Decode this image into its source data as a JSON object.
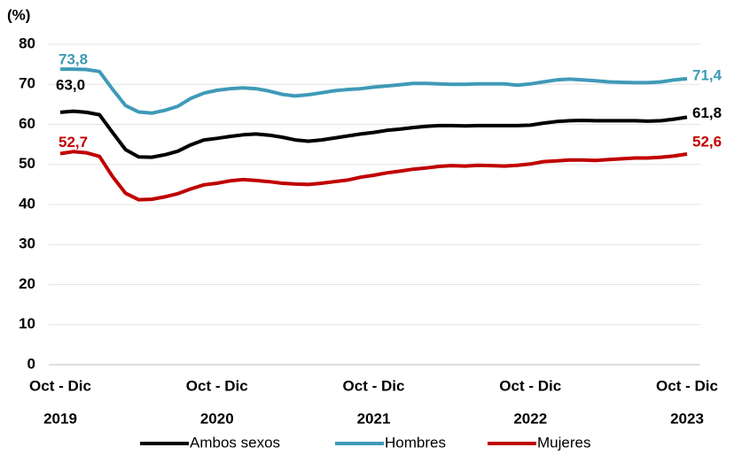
{
  "chart_data": {
    "type": "line",
    "y_axis_label": "(%)",
    "categories": [
      "Oct - Dic",
      null,
      null,
      null,
      null,
      null,
      null,
      null,
      null,
      null,
      null,
      null,
      "Oct - Dic",
      null,
      null,
      null,
      null,
      null,
      null,
      null,
      null,
      null,
      null,
      null,
      "Oct - Dic",
      null,
      null,
      null,
      null,
      null,
      null,
      null,
      null,
      null,
      null,
      null,
      "Oct - Dic",
      null,
      null,
      null,
      null,
      null,
      null,
      null,
      null,
      null,
      null,
      null,
      "Oct - Dic"
    ],
    "years": [
      "2019",
      null,
      null,
      null,
      null,
      null,
      null,
      null,
      null,
      null,
      null,
      null,
      "2020",
      null,
      null,
      null,
      null,
      null,
      null,
      null,
      null,
      null,
      null,
      null,
      "2021",
      null,
      null,
      null,
      null,
      null,
      null,
      null,
      null,
      null,
      null,
      null,
      "2022",
      null,
      null,
      null,
      null,
      null,
      null,
      null,
      null,
      null,
      null,
      null,
      "2023"
    ],
    "series": [
      {
        "name": "Ambos sexos",
        "color": "#000000",
        "values": [
          63.0,
          63.3,
          63.0,
          62.4,
          58.0,
          53.7,
          51.9,
          51.8,
          52.4,
          53.3,
          54.9,
          56.1,
          56.5,
          57.0,
          57.4,
          57.6,
          57.3,
          56.8,
          56.1,
          55.8,
          56.1,
          56.6,
          57.1,
          57.6,
          58.0,
          58.5,
          58.8,
          59.2,
          59.5,
          59.7,
          59.7,
          59.6,
          59.7,
          59.7,
          59.7,
          59.7,
          59.8,
          60.3,
          60.7,
          60.9,
          61.0,
          60.9,
          60.9,
          60.9,
          60.9,
          60.8,
          60.9,
          61.3,
          61.8
        ],
        "value_labels": [
          "63,0",
          null,
          null,
          null,
          null,
          null,
          null,
          null,
          null,
          null,
          null,
          null,
          null,
          null,
          null,
          null,
          null,
          null,
          null,
          null,
          null,
          null,
          null,
          null,
          null,
          null,
          null,
          null,
          null,
          null,
          null,
          null,
          null,
          null,
          null,
          null,
          null,
          null,
          null,
          null,
          null,
          null,
          null,
          null,
          null,
          null,
          null,
          null,
          "61,8"
        ]
      },
      {
        "name": "Hombres",
        "color": "#3f9ab8",
        "values": [
          73.8,
          73.8,
          73.7,
          73.2,
          68.8,
          64.7,
          63.1,
          62.8,
          63.5,
          64.5,
          66.5,
          67.8,
          68.5,
          68.9,
          69.1,
          68.9,
          68.3,
          67.5,
          67.1,
          67.4,
          67.9,
          68.4,
          68.7,
          68.9,
          69.3,
          69.6,
          69.9,
          70.2,
          70.2,
          70.1,
          70.0,
          70.0,
          70.1,
          70.1,
          70.1,
          69.8,
          70.1,
          70.6,
          71.1,
          71.3,
          71.1,
          70.9,
          70.6,
          70.5,
          70.4,
          70.4,
          70.6,
          71.1,
          71.4
        ],
        "value_labels": [
          "73,8",
          null,
          null,
          null,
          null,
          null,
          null,
          null,
          null,
          null,
          null,
          null,
          null,
          null,
          null,
          null,
          null,
          null,
          null,
          null,
          null,
          null,
          null,
          null,
          null,
          null,
          null,
          null,
          null,
          null,
          null,
          null,
          null,
          null,
          null,
          null,
          null,
          null,
          null,
          null,
          null,
          null,
          null,
          null,
          null,
          null,
          null,
          null,
          "71,4"
        ]
      },
      {
        "name": "Mujeres",
        "color": "#c00000",
        "values": [
          52.7,
          53.2,
          52.9,
          52.0,
          47.0,
          42.8,
          41.2,
          41.3,
          41.9,
          42.7,
          43.9,
          44.9,
          45.3,
          45.9,
          46.2,
          46.0,
          45.7,
          45.3,
          45.1,
          45.0,
          45.3,
          45.7,
          46.1,
          46.8,
          47.3,
          47.9,
          48.3,
          48.8,
          49.1,
          49.5,
          49.7,
          49.6,
          49.8,
          49.7,
          49.6,
          49.8,
          50.1,
          50.7,
          50.9,
          51.1,
          51.1,
          51.0,
          51.2,
          51.4,
          51.6,
          51.6,
          51.8,
          52.1,
          52.6
        ],
        "value_labels": [
          "52,7",
          null,
          null,
          null,
          null,
          null,
          null,
          null,
          null,
          null,
          null,
          null,
          null,
          null,
          null,
          null,
          null,
          null,
          null,
          null,
          null,
          null,
          null,
          null,
          null,
          null,
          null,
          null,
          null,
          null,
          null,
          null,
          null,
          null,
          null,
          null,
          null,
          null,
          null,
          null,
          null,
          null,
          null,
          null,
          null,
          null,
          null,
          null,
          "52,6"
        ]
      }
    ],
    "ylim": [
      0,
      80
    ],
    "yticks": [
      0,
      10,
      20,
      30,
      40,
      50,
      60,
      70,
      80
    ],
    "grid": true,
    "legend": "bottom"
  }
}
